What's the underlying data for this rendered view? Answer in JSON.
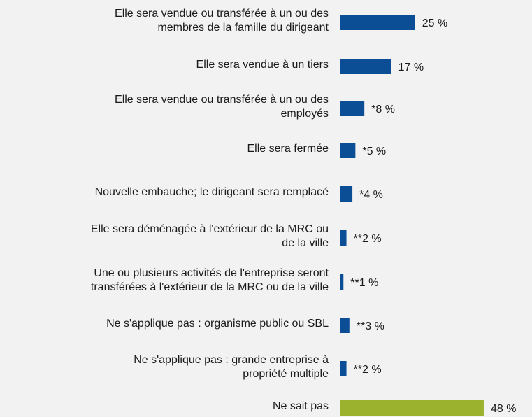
{
  "chart_data": {
    "type": "bar",
    "orientation": "horizontal",
    "categories": [
      [
        "Elle sera vendue ou transférée à un ou des",
        "membres de la famille du dirigeant"
      ],
      [
        "Elle sera vendue à un tiers"
      ],
      [
        "Elle sera vendue ou transférée à un ou des",
        "employés"
      ],
      [
        "Elle sera fermée"
      ],
      [
        "Nouvelle embauche; le dirigeant sera remplacé"
      ],
      [
        "Elle sera déménagée à l'extérieur de la MRC ou",
        "de la ville"
      ],
      [
        "Une ou plusieurs activités de l'entreprise seront",
        "transférées à l'extérieur de la MRC ou de la ville"
      ],
      [
        "Ne s'applique pas : organisme public ou SBL"
      ],
      [
        "Ne s'applique pas : grande entreprise à",
        "propriété multiple"
      ],
      [
        "Ne sait pas"
      ]
    ],
    "values": [
      25,
      17,
      8,
      5,
      4,
      2,
      1,
      3,
      2,
      48
    ],
    "value_labels": [
      "25 %",
      "17 %",
      "*8 %",
      "*5 %",
      "*4 %",
      "**2 %",
      "**1 %",
      "**3 %",
      "**2 %",
      "48 %"
    ],
    "colors": [
      "#0b4e96",
      "#0b4e96",
      "#0b4e96",
      "#0b4e96",
      "#0b4e96",
      "#0b4e96",
      "#0b4e96",
      "#0b4e96",
      "#0b4e96",
      "#9bb22f"
    ]
  }
}
